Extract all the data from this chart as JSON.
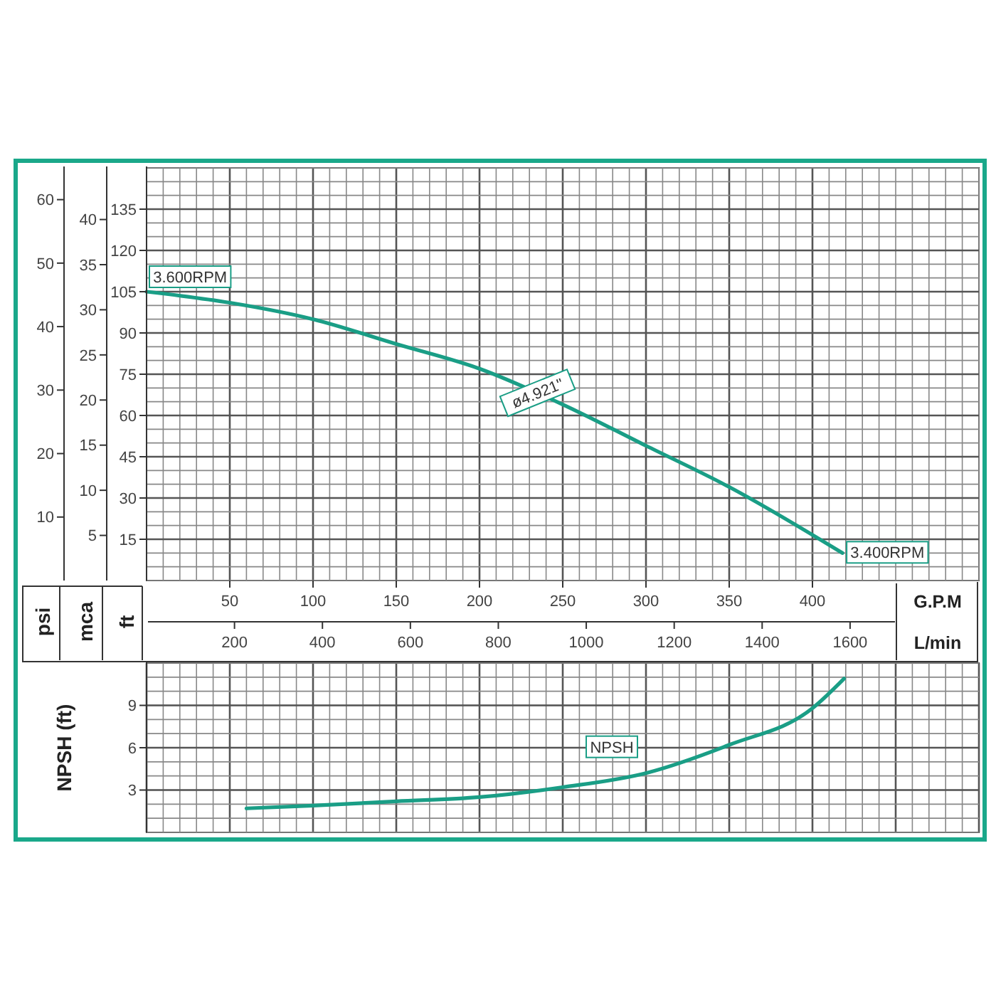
{
  "chart_data": [
    {
      "type": "line",
      "x": [
        0,
        50,
        100,
        150,
        200,
        250,
        300,
        350,
        418
      ],
      "series": [
        {
          "color": "#1a9e86",
          "values": [
            105,
            101,
            95,
            86,
            77,
            64,
            49,
            34,
            10
          ]
        }
      ],
      "xlim": [
        0,
        500
      ],
      "xticks": [
        50,
        100,
        150,
        200,
        250,
        300,
        350,
        400
      ],
      "xlabel": "G.P.M",
      "x2lim": [
        0,
        1893
      ],
      "x2ticks": [
        200,
        400,
        600,
        800,
        1000,
        1200,
        1400,
        1600
      ],
      "x2label": "L/min",
      "ylim": [
        0,
        150
      ],
      "yticks": [
        15,
        30,
        45,
        60,
        75,
        90,
        105,
        120,
        135
      ],
      "ylabel": "ft",
      "y2lim": [
        0,
        45.72
      ],
      "y2ticks": [
        5,
        10,
        15,
        20,
        25,
        30,
        35,
        40
      ],
      "y2label": "mca",
      "y3lim": [
        0,
        65
      ],
      "y3ticks": [
        10,
        20,
        30,
        40,
        50,
        60
      ],
      "y3label": "psi",
      "grid": true,
      "line_style": "solid",
      "marker": "none",
      "annotations": [
        {
          "text": "3.600RPM",
          "x": 0,
          "y": 105
        },
        {
          "text": "ø4.921\"",
          "x": 235,
          "y": 68
        },
        {
          "text": "3.400RPM",
          "x": 418,
          "y": 10
        }
      ]
    },
    {
      "type": "line",
      "x": [
        60,
        100,
        150,
        200,
        250,
        300,
        350,
        400,
        419
      ],
      "series": [
        {
          "name": "NPSH",
          "color": "#1a9e86",
          "values": [
            1.7,
            1.9,
            2.2,
            2.5,
            3.2,
            4.2,
            6.2,
            8.8,
            10.9
          ]
        }
      ],
      "xlim": [
        0,
        500
      ],
      "ylim": [
        0,
        12
      ],
      "yticks": [
        3,
        6,
        9
      ],
      "ylabel": "NPSH (ft)",
      "tick_labels": "y",
      "grid": true,
      "line_style": "solid",
      "marker": "none"
    }
  ]
}
